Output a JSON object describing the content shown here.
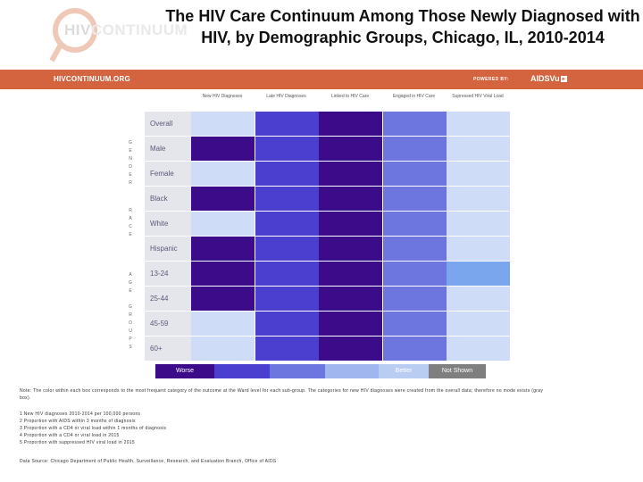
{
  "header": {
    "title": "The HIV Care Continuum Among Those Newly Diagnosed with HIV, by Demographic Groups, Chicago, IL, 2010-2014",
    "logo_hiv": "HIV",
    "logo_rest": "CONTINUUM"
  },
  "banner": {
    "site": "HIVCONTINUUM.ORG",
    "powered_by": "POWERED BY:",
    "brand": "AIDSVu",
    "brand_box": "▸"
  },
  "columns": [
    "New HIV Diagnoses",
    "Late HIV Diagnoses",
    "Linked to HIV Care",
    "Engaged in HIV Care",
    "Supressed HIV Viral Load"
  ],
  "colors": {
    "c1": "#3c0b8a",
    "c2": "#4a3fcf",
    "c3": "#6c76de",
    "c4": "#9fb6ef",
    "c5": "#cfdcf8",
    "c6": "#7aa6ee",
    "label_bg": "#e5e5ec",
    "not_shown": "#7f7f7f"
  },
  "groups": [
    {
      "letters": [
        "G",
        "E",
        "N",
        "D",
        "E",
        "R"
      ]
    },
    {
      "letters": [
        "R",
        "A",
        "C",
        "E"
      ]
    },
    {
      "letters": [
        "A",
        "G",
        "E",
        "",
        "G",
        "R",
        "O",
        "U",
        "P",
        "S"
      ]
    }
  ],
  "rows": [
    {
      "label": "Overall",
      "cells": [
        "c5",
        "c2",
        "c1",
        "c3",
        "c5"
      ]
    },
    {
      "label": "Male",
      "cells": [
        "c1",
        "c2",
        "c1",
        "c3",
        "c5"
      ]
    },
    {
      "label": "Female",
      "cells": [
        "c5",
        "c2",
        "c1",
        "c3",
        "c5"
      ]
    },
    {
      "label": "Black",
      "cells": [
        "c1",
        "c2",
        "c1",
        "c3",
        "c5"
      ]
    },
    {
      "label": "White",
      "cells": [
        "c5",
        "c2",
        "c1",
        "c3",
        "c5"
      ]
    },
    {
      "label": "Hispanic",
      "cells": [
        "c1",
        "c2",
        "c1",
        "c3",
        "c5"
      ]
    },
    {
      "label": "13-24",
      "cells": [
        "c1",
        "c2",
        "c1",
        "c3",
        "c6"
      ]
    },
    {
      "label": "25-44",
      "cells": [
        "c1",
        "c2",
        "c1",
        "c3",
        "c5"
      ]
    },
    {
      "label": "45-59",
      "cells": [
        "c5",
        "c2",
        "c1",
        "c3",
        "c5"
      ]
    },
    {
      "label": "60+",
      "cells": [
        "c5",
        "c2",
        "c1",
        "c3",
        "c5"
      ]
    }
  ],
  "legend": {
    "worse": "Worse",
    "better": "Better",
    "not_shown": "Not Shown"
  },
  "notes": {
    "note": "Note: The color within each box corresponds to the most frequent category of the outcome at the Ward level for each sub-group. The categories for new HIV diagnoses were created from the overall data; therefore no mode exists (gray box).",
    "footnotes": [
      "1 New HIV diagnoses 2010-2014 per 100,000 persons",
      "2 Proportion with AIDS within 3 months of diagnosis",
      "3 Proportion with a CD4 or viral load within 1 months of diagnosis",
      "4 Proportion with a CD4 or viral load in 2015",
      "5 Proportion with suppressed HIV viral load in 2015"
    ],
    "source": "Data Source: Chicago Department of Public Health, Surveillance, Research, and Evaluation Branch, Office of AIDS"
  }
}
